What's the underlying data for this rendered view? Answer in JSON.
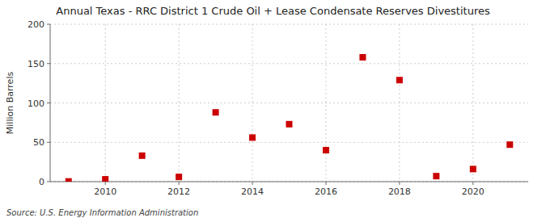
{
  "chart_data": {
    "type": "scatter",
    "title": "Annual Texas - RRC District 1 Crude Oil + Lease Condensate Reserves Divestitures",
    "ylabel": "Million Barrels",
    "annotations": [
      "Source: U.S. Energy Information Administration"
    ],
    "x": [
      2009,
      2010,
      2011,
      2012,
      2013,
      2014,
      2015,
      2016,
      2017,
      2018,
      2019,
      2020,
      2021
    ],
    "values": [
      0.3,
      3.0,
      33.0,
      6.0,
      88.0,
      56.0,
      73.0,
      40.0,
      158.0,
      129.0,
      7.0,
      16.0,
      47.0
    ],
    "color": "#cc0000",
    "marker": "square",
    "xlim": [
      2008.5,
      2021.5
    ],
    "xticks": [
      2010,
      2012,
      2014,
      2016,
      2018,
      2020
    ],
    "ylim": [
      0,
      200
    ],
    "yticks": [
      0,
      50,
      100,
      150,
      200
    ],
    "grid": true
  }
}
